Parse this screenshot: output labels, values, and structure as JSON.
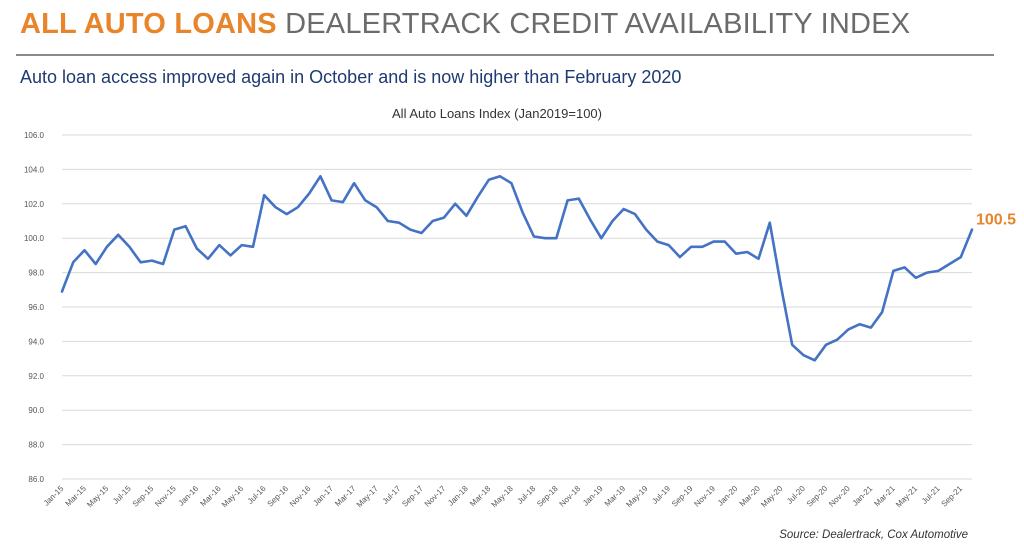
{
  "header": {
    "title_accent": "ALL AUTO LOANS",
    "title_rest": "DEALERTRACK CREDIT AVAILABILITY INDEX",
    "subtitle": "Auto loan access improved again in October and is now higher than February 2020"
  },
  "source": "Source: Dealertrack, Cox Automotive",
  "colors": {
    "accent": "#e8842a",
    "line": "#4472c4",
    "title_gray": "#6b6b6b",
    "subtitle_blue": "#1f3b72"
  },
  "chart_data": {
    "type": "line",
    "title": "All Auto Loans Index (Jan2019=100)",
    "xlabel": "",
    "ylabel": "",
    "ylim": [
      86,
      106
    ],
    "yticks": [
      "86.0",
      "88.0",
      "90.0",
      "92.0",
      "94.0",
      "96.0",
      "98.0",
      "100.0",
      "102.0",
      "104.0",
      "106.0"
    ],
    "grid": true,
    "x": [
      "Jan-15",
      "Feb-15",
      "Mar-15",
      "Apr-15",
      "May-15",
      "Jun-15",
      "Jul-15",
      "Aug-15",
      "Sep-15",
      "Oct-15",
      "Nov-15",
      "Dec-15",
      "Jan-16",
      "Feb-16",
      "Mar-16",
      "Apr-16",
      "May-16",
      "Jun-16",
      "Jul-16",
      "Aug-16",
      "Sep-16",
      "Oct-16",
      "Nov-16",
      "Dec-16",
      "Jan-17",
      "Feb-17",
      "Mar-17",
      "Apr-17",
      "May-17",
      "Jun-17",
      "Jul-17",
      "Aug-17",
      "Sep-17",
      "Oct-17",
      "Nov-17",
      "Dec-17",
      "Jan-18",
      "Feb-18",
      "Mar-18",
      "Apr-18",
      "May-18",
      "Jun-18",
      "Jul-18",
      "Aug-18",
      "Sep-18",
      "Oct-18",
      "Nov-18",
      "Dec-18",
      "Jan-19",
      "Feb-19",
      "Mar-19",
      "Apr-19",
      "May-19",
      "Jun-19",
      "Jul-19",
      "Aug-19",
      "Sep-19",
      "Oct-19",
      "Nov-19",
      "Dec-19",
      "Jan-20",
      "Feb-20",
      "Mar-20",
      "Apr-20",
      "May-20",
      "Jun-20",
      "Jul-20",
      "Aug-20",
      "Sep-20",
      "Oct-20",
      "Nov-20",
      "Dec-20",
      "Jan-21",
      "Feb-21",
      "Mar-21",
      "Apr-21",
      "May-21",
      "Jun-21",
      "Jul-21",
      "Aug-21",
      "Sep-21",
      "Oct-21"
    ],
    "x_tick_labels": [
      "Jan-15",
      "Mar-15",
      "May-15",
      "Jul-15",
      "Sep-15",
      "Nov-15",
      "Jan-16",
      "Mar-16",
      "May-16",
      "Jul-16",
      "Sep-16",
      "Nov-16",
      "Jan-17",
      "Mar-17",
      "May-17",
      "Jul-17",
      "Sep-17",
      "Nov-17",
      "Jan-18",
      "Mar-18",
      "May-18",
      "Jul-18",
      "Sep-18",
      "Nov-18",
      "Jan-19",
      "Mar-19",
      "May-19",
      "Jul-19",
      "Sep-19",
      "Nov-19",
      "Jan-20",
      "Mar-20",
      "May-20",
      "Jul-20",
      "Sep-20",
      "Nov-20",
      "Jan-21",
      "Mar-21",
      "May-21",
      "Jul-21",
      "Sep-21"
    ],
    "series": [
      {
        "name": "",
        "values": [
          96.9,
          98.6,
          99.3,
          98.5,
          99.5,
          100.2,
          99.5,
          98.6,
          98.7,
          98.5,
          100.5,
          100.7,
          99.4,
          98.8,
          99.6,
          99.0,
          99.6,
          99.5,
          102.5,
          101.8,
          101.4,
          101.8,
          102.6,
          103.6,
          102.2,
          102.1,
          103.2,
          102.2,
          101.8,
          101.0,
          100.9,
          100.5,
          100.3,
          101.0,
          101.2,
          102.0,
          101.3,
          102.4,
          103.4,
          103.6,
          103.2,
          101.5,
          100.1,
          100.0,
          100.0,
          102.2,
          102.3,
          101.1,
          100.0,
          101.0,
          101.7,
          101.4,
          100.5,
          99.8,
          99.6,
          98.9,
          99.5,
          99.5,
          99.8,
          99.8,
          99.1,
          99.2,
          98.8,
          100.9,
          97.2,
          93.8,
          93.2,
          92.9,
          93.8,
          94.1,
          94.7,
          95.0,
          94.8,
          95.7,
          98.1,
          98.3,
          97.7,
          98.0,
          98.1,
          98.5,
          98.9,
          100.5
        ]
      }
    ],
    "annotations": [
      {
        "text": "100.5",
        "point": "Oct-21"
      }
    ]
  }
}
